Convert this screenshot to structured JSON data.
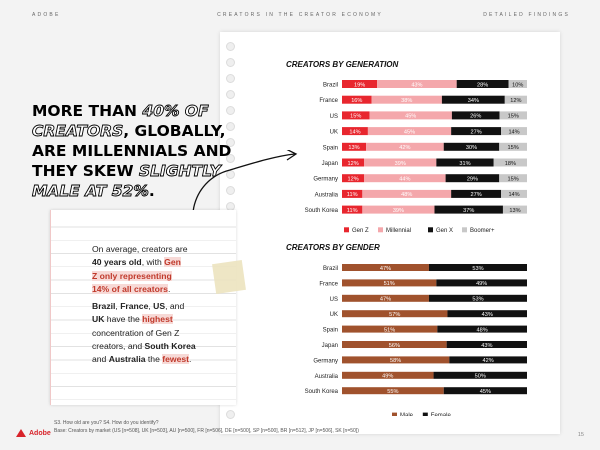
{
  "header": {
    "left": "ADOBE",
    "center": "CREATORS IN THE CREATOR ECONOMY",
    "right": "DETAILED FINDINGS"
  },
  "headline": {
    "line1_pre": "MORE THAN ",
    "line1_emph": "40% OF",
    "line2_emph": "CREATORS",
    "line2_post": ", GLOBALLY,",
    "line3": "ARE MILLENNIALS AND",
    "line4_pre": "THEY SKEW ",
    "line4_emph": "SLIGHTLY",
    "line5_emph": "MALE AT 52%",
    "line5_post": "."
  },
  "note": {
    "p1_a": "On average, creators are",
    "p1_b": "40 years old",
    "p1_c": ", with ",
    "p1_d": "Gen",
    "p1_e": "Z only representing",
    "p1_f": "14% of all creators",
    "p1_g": ".",
    "p2_a": "Brazil",
    "p2_b": ", ",
    "p2_c": "France",
    "p2_d": ", ",
    "p2_e": "US",
    "p2_f": ", and",
    "p2_g": "UK",
    "p2_h": " have the ",
    "p2_i": "highest",
    "p2_j": "concentration of Gen Z",
    "p2_k": "creators, and ",
    "p2_l": "South Korea",
    "p2_m": "and ",
    "p2_n": "Australia",
    "p2_o": " the ",
    "p2_p": "fewest",
    "p2_q": "."
  },
  "colors": {
    "genz": "#e8262e",
    "millennial": "#f4a7ab",
    "genx": "#111111",
    "boomer": "#c8c8c8",
    "male": "#a0522d",
    "female": "#111111",
    "highlight": "#f7d9d6",
    "accent": "#c0392b"
  },
  "chart_data": [
    {
      "type": "bar",
      "stacked": "horizontal-100%",
      "title": "CREATORS BY GENERATION",
      "categories": [
        "Brazil",
        "France",
        "US",
        "UK",
        "Spain",
        "Japan",
        "Germany",
        "Australia",
        "South Korea"
      ],
      "series": [
        {
          "name": "Gen Z",
          "values": [
            19,
            16,
            15,
            14,
            13,
            12,
            12,
            11,
            11
          ]
        },
        {
          "name": "Millennial",
          "values": [
            43,
            38,
            45,
            45,
            42,
            39,
            44,
            48,
            39
          ]
        },
        {
          "name": "Gen X",
          "values": [
            28,
            34,
            26,
            27,
            30,
            31,
            29,
            27,
            37
          ]
        },
        {
          "name": "Boomer+",
          "values": [
            10,
            12,
            15,
            14,
            15,
            18,
            15,
            14,
            13
          ]
        }
      ],
      "legend": "bottom"
    },
    {
      "type": "bar",
      "stacked": "horizontal-100%",
      "title": "CREATORS BY GENDER",
      "categories": [
        "Brazil",
        "France",
        "US",
        "UK",
        "Spain",
        "Japan",
        "Germany",
        "Australia",
        "South Korea"
      ],
      "series": [
        {
          "name": "Male",
          "values": [
            47,
            51,
            47,
            57,
            51,
            56,
            58,
            49,
            55
          ]
        },
        {
          "name": "Female",
          "values": [
            53,
            49,
            53,
            43,
            48,
            43,
            42,
            50,
            45
          ]
        }
      ],
      "legend": "bottom"
    }
  ],
  "footer": {
    "line1": "S3. How old are you? S4. How do you identify?",
    "line2": "Base: Creators by market (US [n=508], UK [n=503], AU [n=500], FR [n=506], DE [n=500], SP [n=500], BR [n=512], JP [n=506], SK [n=50])",
    "page": "15",
    "brand": "Adobe"
  }
}
